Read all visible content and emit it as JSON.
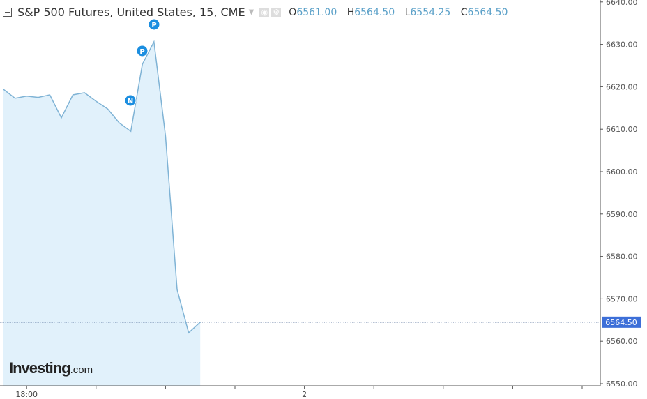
{
  "header": {
    "title": "S&P 500 Futures, United States, 15, CME",
    "open_label": "O",
    "open": "6561.00",
    "high_label": "H",
    "high": "6564.50",
    "low_label": "L",
    "low": "6554.25",
    "close_label": "C",
    "close": "6564.50"
  },
  "logo": {
    "main": "Investing",
    "suffix": ".com"
  },
  "chart_data": {
    "type": "area",
    "title": "S&P 500 Futures, United States, 15, CME",
    "values": [
      6619.4,
      6617.3,
      6617.8,
      6617.5,
      6618.1,
      6612.7,
      6618.1,
      6618.6,
      6616.6,
      6614.8,
      6611.5,
      6609.5,
      6625.3,
      6630.6,
      6608.4,
      6572.2,
      6562.0,
      6564.5
    ],
    "ylim": [
      6549.5,
      6640.5
    ],
    "y_ticks": [
      "6550.00",
      "6560.00",
      "6570.00",
      "6580.00",
      "6590.00",
      "6600.00",
      "6610.00",
      "6620.00",
      "6630.00",
      "6640.00"
    ],
    "x_tick_labels": [
      {
        "index": 2,
        "label": "18:00"
      },
      {
        "index": 8,
        "label": ""
      },
      {
        "index": 14,
        "label": ""
      },
      {
        "index": 20,
        "label": ""
      },
      {
        "index": 26,
        "label": "2"
      },
      {
        "index": 32,
        "label": ""
      },
      {
        "index": 38,
        "label": ""
      },
      {
        "index": 44,
        "label": ""
      },
      {
        "index": 50,
        "label": ""
      }
    ],
    "last_price": "6564.50",
    "event_markers": [
      {
        "index": 11,
        "label": "N"
      },
      {
        "index": 12,
        "label": "P"
      },
      {
        "index": 13,
        "label": "P"
      }
    ],
    "colors": {
      "line": "#7fb3d5",
      "fill": "#e1f1fb",
      "marker": "#1b8ee0",
      "price_tag": "#3d6fd8"
    },
    "grid": false
  }
}
